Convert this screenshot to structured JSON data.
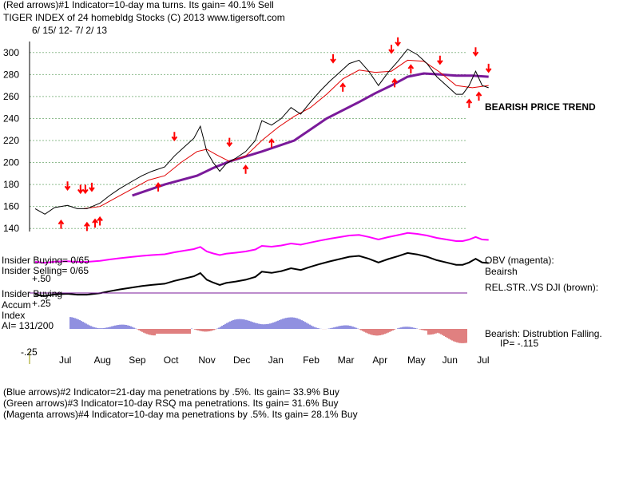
{
  "header": {
    "line1": "(Red arrows)#1 Indicator=10-day ma turns. Its gain= 40.1% Sell",
    "line2": "TIGER INDEX of  24 homebldg Stocks  (C) 2013  www.tigersoft.com",
    "line3": "6/ 15/ 12-  7/ 2/ 13"
  },
  "labels": {
    "bearish_trend": "BEARISH PRICE TREND",
    "insider_buying_count": "Insider Buying= 0/65",
    "insider_selling_count": "Insider Selling= 0/65",
    "obv": "OBV (magenta):",
    "obv_state": "Beairsh",
    "relstr": "REL.STR..VS DJI (brown):",
    "insider_buying": "Insider Buying",
    "accum": "Accum",
    "index": "Index",
    "ai": "AI= 131/200",
    "bearish_dist": "Bearish: Distrubtion Falling.",
    "ip": "IP= -.115",
    "plus50": "+.50",
    "plus25": "+.25",
    "minus25": "-.25"
  },
  "footer": {
    "line1": "(Blue arrows)#2 Indicator=21-day ma penetrations by .5%. Its gain= 33.9% Buy",
    "line2": "(Green arrows)#3 Indicator=10-day RSQ ma penetrations. Its gain= 31.6% Buy",
    "line3": "(Magenta arrows)#4 Indicator=10-day ma penetrations by .5%. Its gain= 28.1% Buy"
  },
  "colors": {
    "price": "#000000",
    "ma_short": "#e00000",
    "ma_long": "#7a1a9a",
    "obv": "#ff00ff",
    "relstr": "#000000",
    "accum_pos": "#2020c0",
    "accum_neg": "#c00000",
    "grid": "#8fbc8f",
    "arrow": "#ff0000",
    "divider": "#7a1a9a"
  },
  "chart_data": {
    "type": "line",
    "x_axis_months": [
      "Jul",
      "Aug",
      "Sep",
      "Oct",
      "Nov",
      "Dec",
      "Jan",
      "Feb",
      "Mar",
      "Apr",
      "May",
      "Jun",
      "Jul"
    ],
    "y_ticks": [
      140,
      160,
      180,
      200,
      220,
      240,
      260,
      280,
      300
    ],
    "ylim": [
      130,
      310
    ],
    "price_series": [
      [
        0,
        158
      ],
      [
        0.3,
        153
      ],
      [
        0.6,
        159
      ],
      [
        1.0,
        161
      ],
      [
        1.3,
        158
      ],
      [
        1.6,
        158
      ],
      [
        2.0,
        163
      ],
      [
        2.3,
        170
      ],
      [
        2.6,
        176
      ],
      [
        3.0,
        183
      ],
      [
        3.3,
        188
      ],
      [
        3.6,
        192
      ],
      [
        4.0,
        196
      ],
      [
        4.3,
        206
      ],
      [
        4.6,
        214
      ],
      [
        4.9,
        222
      ],
      [
        5.1,
        233
      ],
      [
        5.3,
        210
      ],
      [
        5.5,
        200
      ],
      [
        5.7,
        192
      ],
      [
        5.9,
        199
      ],
      [
        6.2,
        204
      ],
      [
        6.5,
        210
      ],
      [
        6.8,
        220
      ],
      [
        7.0,
        238
      ],
      [
        7.3,
        234
      ],
      [
        7.6,
        240
      ],
      [
        7.9,
        250
      ],
      [
        8.2,
        244
      ],
      [
        8.5,
        255
      ],
      [
        8.8,
        265
      ],
      [
        9.1,
        274
      ],
      [
        9.4,
        282
      ],
      [
        9.7,
        290
      ],
      [
        10.0,
        293
      ],
      [
        10.3,
        283
      ],
      [
        10.6,
        270
      ],
      [
        10.9,
        282
      ],
      [
        11.2,
        292
      ],
      [
        11.5,
        303
      ],
      [
        11.8,
        298
      ],
      [
        12.1,
        290
      ],
      [
        12.4,
        278
      ],
      [
        12.7,
        270
      ],
      [
        13.0,
        262
      ],
      [
        13.2,
        262
      ],
      [
        13.4,
        270
      ],
      [
        13.6,
        283
      ],
      [
        13.8,
        270
      ],
      [
        14.0,
        268
      ]
    ],
    "ma_short_series": [
      [
        1.5,
        158
      ],
      [
        2.0,
        160
      ],
      [
        2.5,
        168
      ],
      [
        3.0,
        176
      ],
      [
        3.5,
        184
      ],
      [
        4.0,
        188
      ],
      [
        4.5,
        200
      ],
      [
        5.0,
        210
      ],
      [
        5.3,
        212
      ],
      [
        5.6,
        207
      ],
      [
        6.0,
        201
      ],
      [
        6.5,
        206
      ],
      [
        7.0,
        220
      ],
      [
        7.5,
        232
      ],
      [
        8.0,
        242
      ],
      [
        8.5,
        250
      ],
      [
        9.0,
        262
      ],
      [
        9.5,
        276
      ],
      [
        10.0,
        284
      ],
      [
        10.5,
        282
      ],
      [
        11.0,
        283
      ],
      [
        11.5,
        293
      ],
      [
        12.0,
        292
      ],
      [
        12.5,
        282
      ],
      [
        13.0,
        270
      ],
      [
        13.5,
        268
      ],
      [
        14.0,
        270
      ]
    ],
    "ma_long_series": [
      [
        3.0,
        170
      ],
      [
        4.0,
        180
      ],
      [
        5.0,
        188
      ],
      [
        5.5,
        195
      ],
      [
        6.0,
        201
      ],
      [
        7.0,
        210
      ],
      [
        8.0,
        220
      ],
      [
        9.0,
        240
      ],
      [
        10.0,
        255
      ],
      [
        10.5,
        263
      ],
      [
        11.0,
        270
      ],
      [
        11.5,
        278
      ],
      [
        12.0,
        281
      ],
      [
        12.5,
        280
      ],
      [
        13.0,
        279
      ],
      [
        13.5,
        279
      ],
      [
        14.0,
        278
      ]
    ],
    "sell_arrows_x": [
      1.0,
      1.4,
      1.55,
      1.75,
      4.3,
      6.0,
      9.2,
      11.0,
      11.2,
      12.5,
      13.6,
      14.0
    ],
    "buy_arrows_x": [
      0.8,
      1.6,
      1.85,
      2.0,
      3.8,
      6.5,
      7.3,
      9.5,
      11.1,
      11.6,
      13.4,
      13.7
    ]
  }
}
